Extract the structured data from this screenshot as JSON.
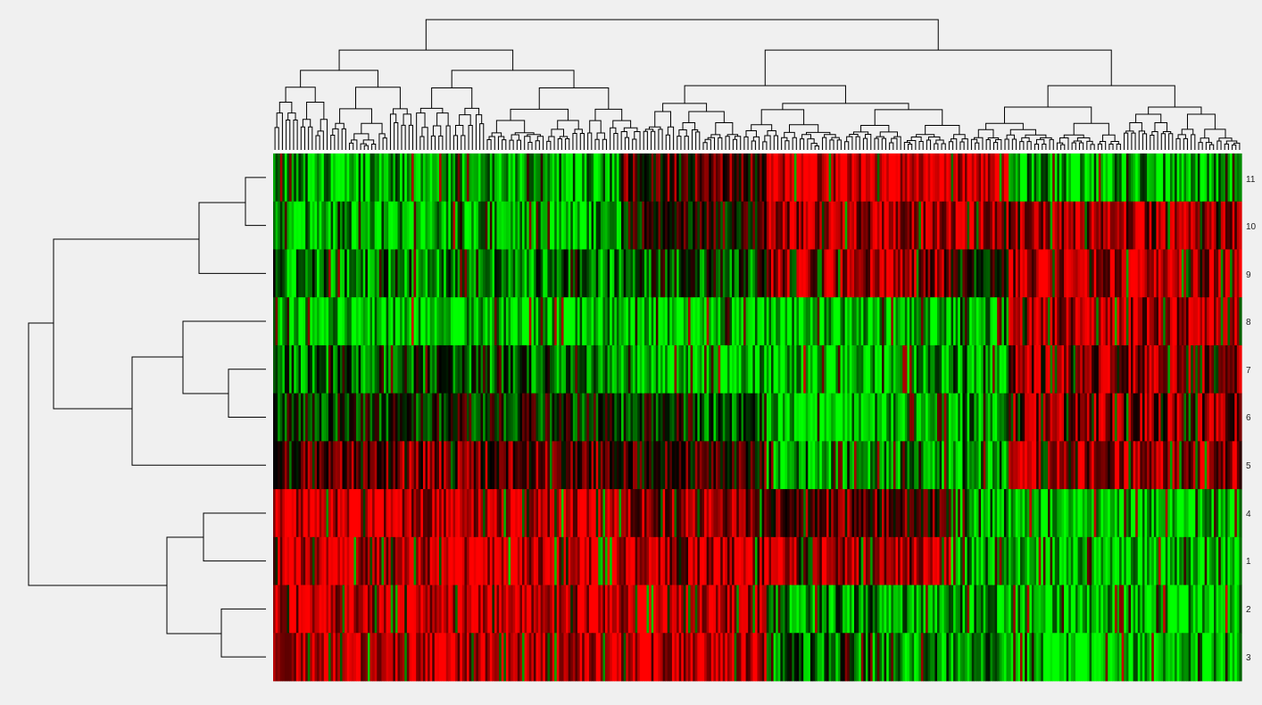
{
  "chart_data": {
    "type": "heatmap",
    "title": "",
    "xlabel": "",
    "ylabel": "",
    "row_labels": [
      "11",
      "10",
      "9",
      "8",
      "7",
      "6",
      "5",
      "4",
      "1",
      "2",
      "3"
    ],
    "column_labels_visible": false,
    "color_scale": {
      "low": "#00ff00",
      "mid": "#000000",
      "high": "#ff0000"
    },
    "row_dendrogram": true,
    "column_dendrogram": true,
    "column_block_profiles": [
      {
        "columns": 0.36,
        "values": [
          -0.7,
          -0.7,
          -0.5,
          -0.8,
          -0.4,
          -0.1,
          0.4,
          0.8,
          0.8,
          0.8,
          0.8
        ]
      },
      {
        "columns": 0.15,
        "values": [
          0.3,
          0.1,
          -0.3,
          -0.8,
          -0.8,
          -0.3,
          0.2,
          0.6,
          0.7,
          0.8,
          0.8
        ]
      },
      {
        "columns": 0.11,
        "values": [
          0.9,
          0.7,
          0.7,
          -0.8,
          -0.8,
          -0.8,
          -0.6,
          0.4,
          0.6,
          -0.6,
          -0.4
        ]
      },
      {
        "columns": 0.08,
        "values": [
          0.9,
          0.8,
          0.6,
          -0.8,
          -0.7,
          -0.7,
          -0.6,
          0.3,
          0.7,
          -0.7,
          -0.6
        ]
      },
      {
        "columns": 0.06,
        "values": [
          0.8,
          0.7,
          -0.1,
          -0.6,
          -0.6,
          -0.6,
          -0.6,
          -0.6,
          -0.6,
          -0.6,
          -0.6
        ]
      },
      {
        "columns": 0.24,
        "values": [
          -0.7,
          0.6,
          0.7,
          0.7,
          0.6,
          0.5,
          0.6,
          -0.8,
          -0.8,
          -0.8,
          -0.8
        ]
      }
    ]
  },
  "colors": {
    "background": "#f0f0f0",
    "dendrogram_line": "#000000"
  }
}
